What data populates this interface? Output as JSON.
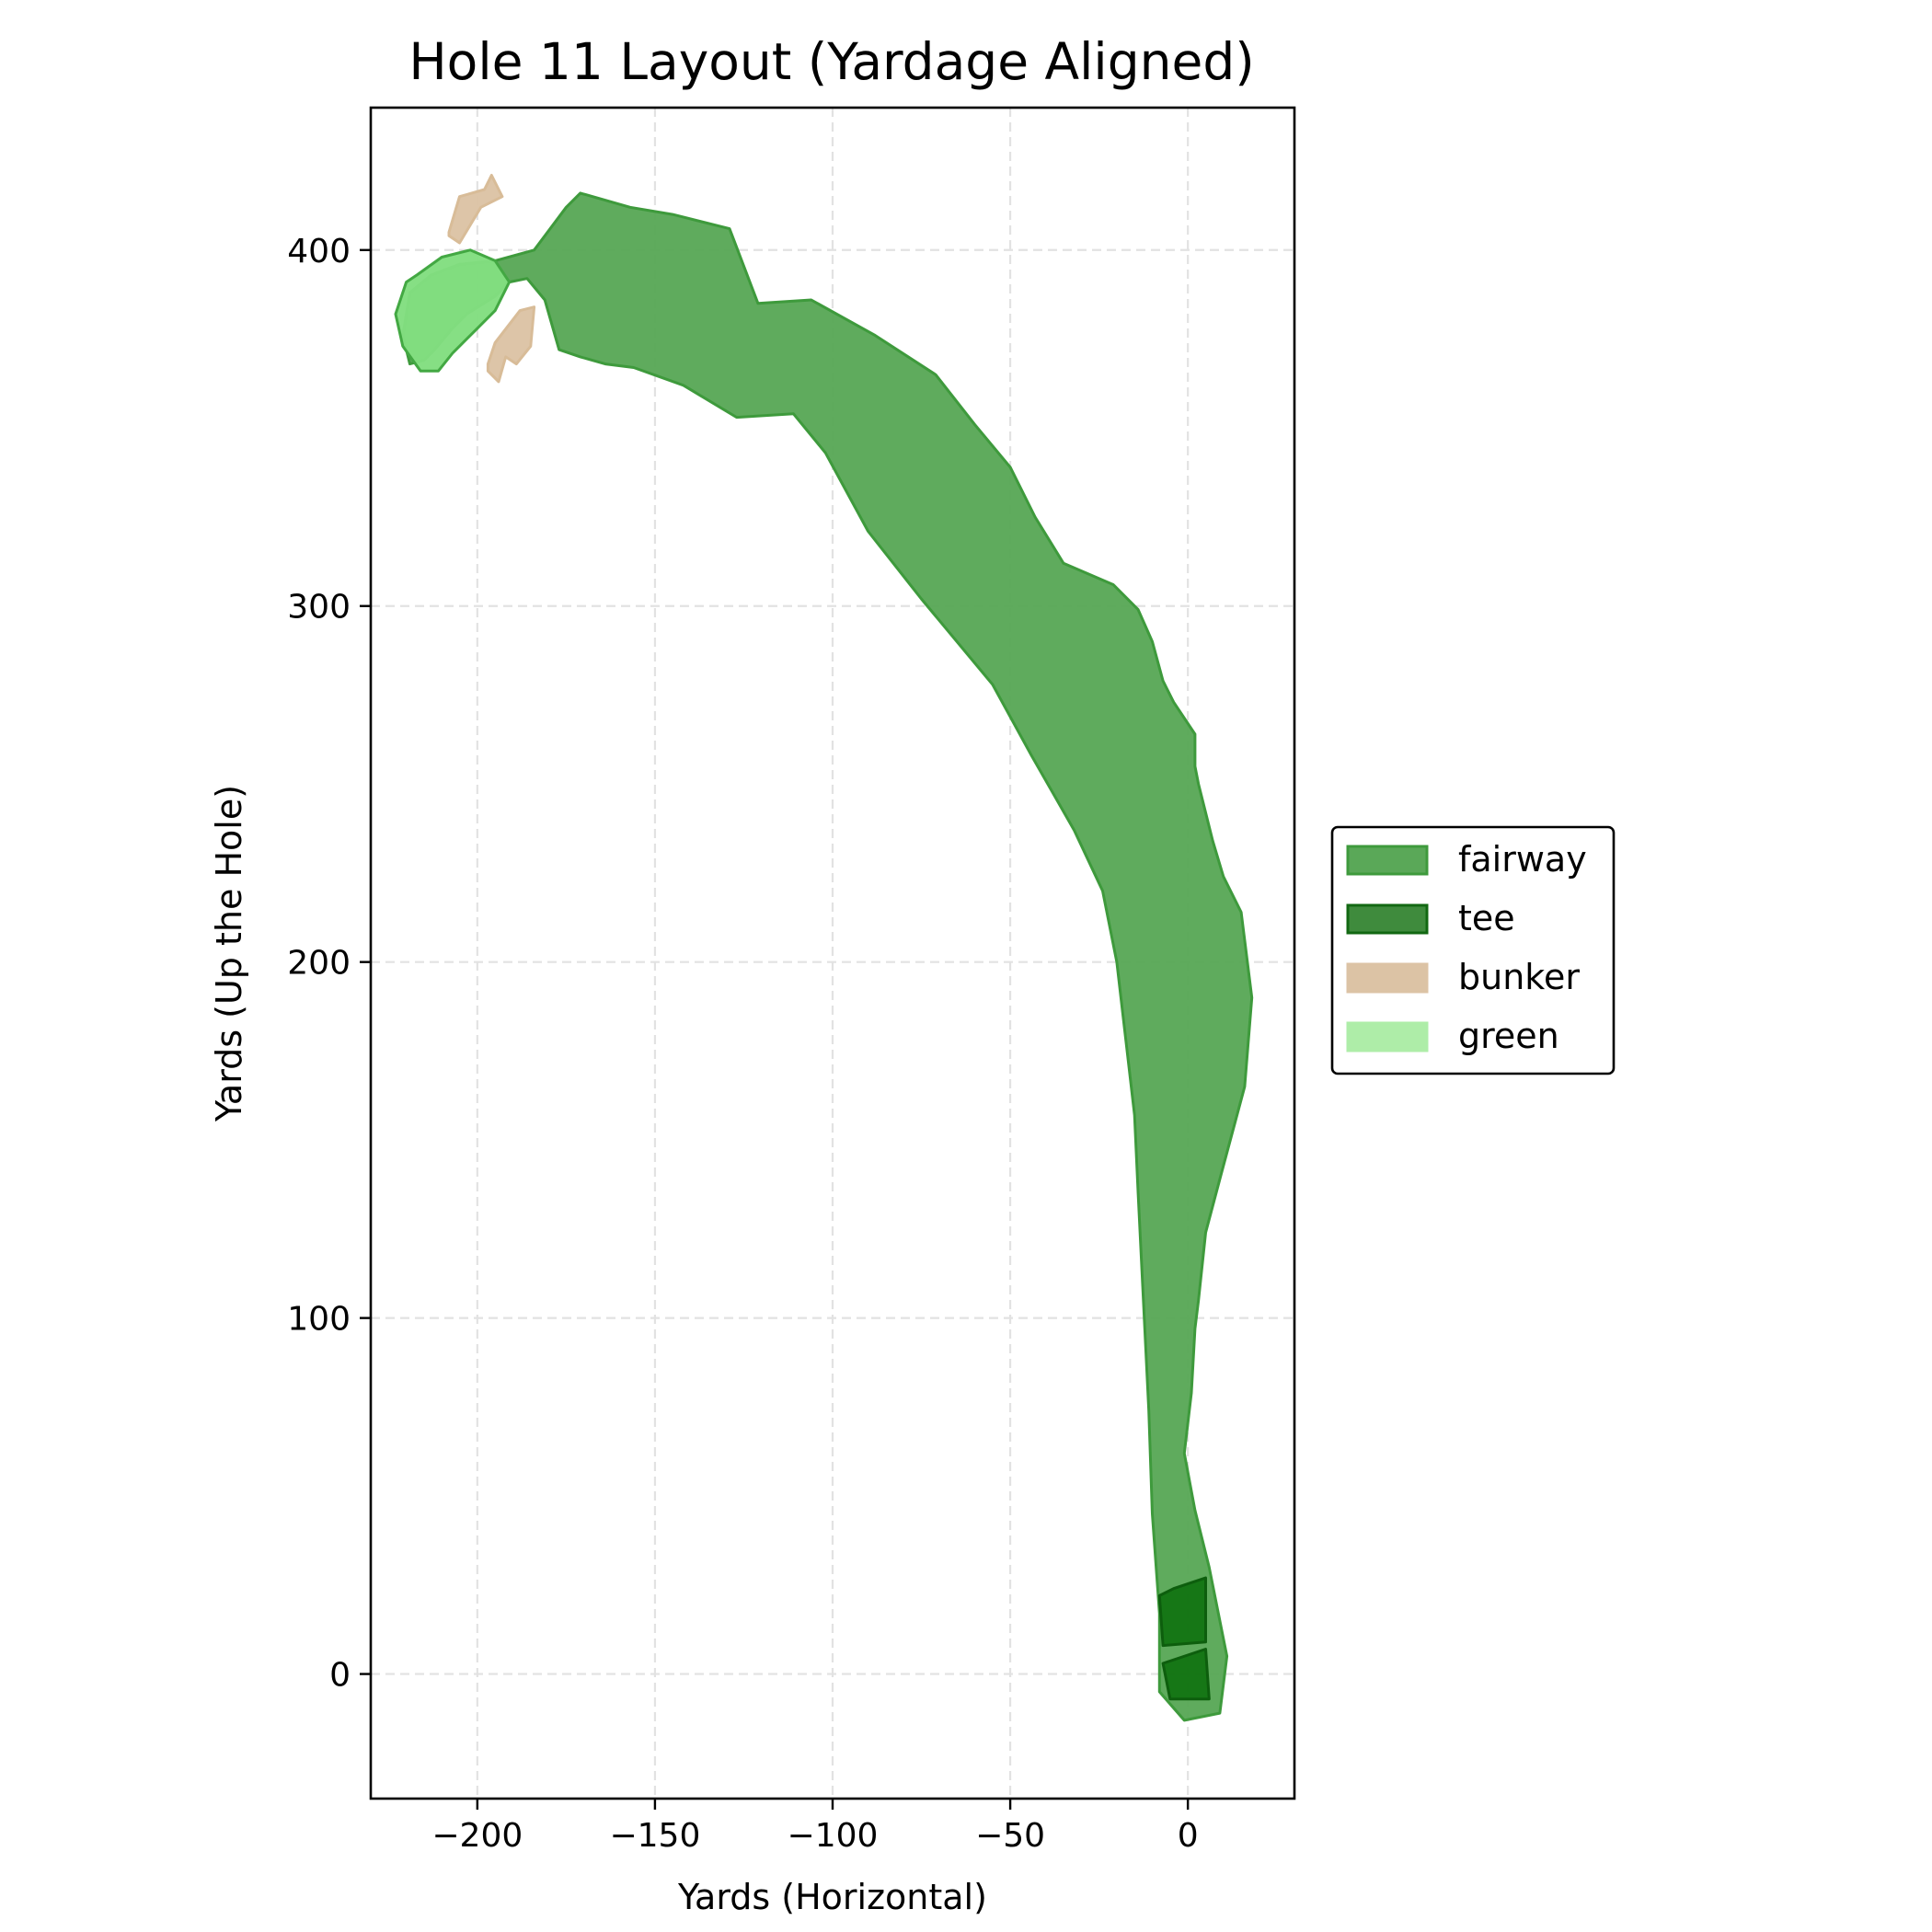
{
  "chart_data": {
    "type": "area",
    "title": "Hole 11 Layout (Yardage Aligned)",
    "xlabel": "Yards (Horizontal)",
    "ylabel": "Yards (Up the Hole)",
    "xlim": [
      -230,
      30
    ],
    "ylim": [
      -35,
      440
    ],
    "xticks": [
      -200,
      -150,
      -100,
      -50,
      0
    ],
    "yticks": [
      0,
      100,
      200,
      300,
      400
    ],
    "xtick_labels": [
      "−200",
      "−150",
      "−100",
      "−50",
      "0"
    ],
    "ytick_labels": [
      "0",
      "100",
      "200",
      "300",
      "400"
    ],
    "grid": true,
    "legend_position": "right",
    "series": [
      {
        "name": "fairway",
        "fill": "#5aa858",
        "edge": "#3e9a3c",
        "polygons": [
          [
            [
              -171,
              416
            ],
            [
              -157,
              412
            ],
            [
              -145,
              410
            ],
            [
              -129,
              406
            ],
            [
              -121,
              385
            ],
            [
              -106,
              386
            ],
            [
              -88,
              376
            ],
            [
              -71,
              365
            ],
            [
              -60,
              351
            ],
            [
              -50,
              339
            ],
            [
              -43,
              325
            ],
            [
              -35,
              312
            ],
            [
              -21,
              306
            ],
            [
              -14,
              299
            ],
            [
              -10,
              290
            ],
            [
              -7,
              279
            ],
            [
              -4,
              273
            ],
            [
              2,
              264
            ],
            [
              2,
              255
            ],
            [
              3,
              250
            ],
            [
              7,
              234
            ],
            [
              10,
              224
            ],
            [
              15,
              214
            ],
            [
              18,
              190
            ],
            [
              16,
              165
            ],
            [
              9,
              139
            ],
            [
              5,
              124
            ],
            [
              3,
              105
            ],
            [
              2,
              97
            ],
            [
              1,
              79
            ],
            [
              -1,
              62
            ],
            [
              2,
              46
            ],
            [
              6,
              30
            ],
            [
              11,
              5
            ],
            [
              9,
              -11
            ],
            [
              -1,
              -13
            ],
            [
              -8,
              -5
            ],
            [
              -8,
              17
            ],
            [
              -10,
              45
            ],
            [
              -11,
              74
            ],
            [
              -14,
              135
            ],
            [
              -15,
              157
            ],
            [
              -20,
              200
            ],
            [
              -24,
              220
            ],
            [
              -32,
              237
            ],
            [
              -44,
              258
            ],
            [
              -55,
              278
            ],
            [
              -75,
              302
            ],
            [
              -90,
              321
            ],
            [
              -102,
              343
            ],
            [
              -111,
              354
            ],
            [
              -127,
              353
            ],
            [
              -142,
              362
            ],
            [
              -156,
              367
            ],
            [
              -164,
              368
            ],
            [
              -171,
              370
            ],
            [
              -177,
              372
            ],
            [
              -181,
              386
            ],
            [
              -186,
              392
            ],
            [
              -191,
              391
            ],
            [
              -195,
              387
            ],
            [
              -203,
              382
            ],
            [
              -207,
              378
            ],
            [
              -212,
              372
            ],
            [
              -215,
              369
            ],
            [
              -219,
              368
            ],
            [
              -221,
              376
            ],
            [
              -219,
              388
            ],
            [
              -213,
              393
            ],
            [
              -205,
              396
            ],
            [
              -195,
              397
            ],
            [
              -184,
              400
            ],
            [
              -175,
              412
            ]
          ]
        ]
      },
      {
        "name": "tee",
        "fill": "#147514",
        "edge": "#0d5e0d",
        "polygons": [
          [
            [
              -8,
              22
            ],
            [
              -4,
              24
            ],
            [
              5,
              27
            ],
            [
              5,
              9
            ],
            [
              -7,
              8
            ]
          ],
          [
            [
              -7,
              3
            ],
            [
              5,
              7
            ],
            [
              6,
              -7
            ],
            [
              -5,
              -7
            ]
          ]
        ]
      },
      {
        "name": "bunker",
        "fill": "#dcc3a5",
        "edge": "#d8bc98",
        "polygons": [
          [
            [
              -208,
              405
            ],
            [
              -205,
              415
            ],
            [
              -198,
              417
            ],
            [
              -196,
              421
            ],
            [
              -193,
              415
            ],
            [
              -199,
              412
            ],
            [
              -205,
              402
            ],
            [
              -208,
              404
            ]
          ],
          [
            [
              -197,
              368
            ],
            [
              -195,
              374
            ],
            [
              -188,
              383
            ],
            [
              -184,
              384
            ],
            [
              -185,
              373
            ],
            [
              -189,
              368
            ],
            [
              -192,
              370
            ],
            [
              -194,
              363
            ],
            [
              -197,
              366
            ]
          ]
        ]
      },
      {
        "name": "green",
        "fill": "#82de80",
        "edge": "#43a843",
        "polygons": [
          [
            [
              -217,
              393
            ],
            [
              -210,
              398
            ],
            [
              -202,
              400
            ],
            [
              -195,
              397
            ],
            [
              -191,
              391
            ],
            [
              -195,
              383
            ],
            [
              -201,
              377
            ],
            [
              -207,
              371
            ],
            [
              -211,
              366
            ],
            [
              -216,
              366
            ],
            [
              -221,
              373
            ],
            [
              -223,
              382
            ],
            [
              -220,
              391
            ]
          ]
        ]
      }
    ]
  }
}
